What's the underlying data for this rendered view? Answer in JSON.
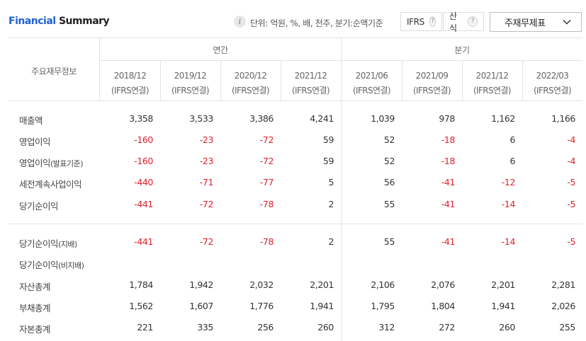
{
  "header": {
    "title_part1": "Financial",
    "title_part2": "Summary",
    "info_icon": "i",
    "unit_text": "단위: 억원, %, 배, 천주, 분기:순액기준",
    "ifrs_label": "IFRS",
    "calc_label": "산식",
    "help_glyph": "?",
    "statement_select": "주재무제표"
  },
  "table": {
    "row_header": "주요재무정보",
    "group_annual": "연간",
    "group_quarter": "분기",
    "periods": [
      {
        "date": "2018/12",
        "basis": "(IFRS연결)"
      },
      {
        "date": "2019/12",
        "basis": "(IFRS연결)"
      },
      {
        "date": "2020/12",
        "basis": "(IFRS연결)"
      },
      {
        "date": "2021/12",
        "basis": "(IFRS연결)"
      },
      {
        "date": "2021/06",
        "basis": "(IFRS연결)"
      },
      {
        "date": "2021/09",
        "basis": "(IFRS연결)"
      },
      {
        "date": "2021/12",
        "basis": "(IFRS연결)"
      },
      {
        "date": "2022/03",
        "basis": "(IFRS연결)"
      }
    ],
    "rows": [
      {
        "label": "매출액",
        "label_suffix": "",
        "values": [
          "3,358",
          "3,533",
          "3,386",
          "4,241",
          "1,039",
          "978",
          "1,162",
          "1,166"
        ]
      },
      {
        "label": "영업이익",
        "label_suffix": "",
        "values": [
          "-160",
          "-23",
          "-72",
          "59",
          "52",
          "-18",
          "6",
          "-4"
        ]
      },
      {
        "label": "영업이익",
        "label_suffix": "(발표기준)",
        "values": [
          "-160",
          "-23",
          "-72",
          "59",
          "52",
          "-18",
          "6",
          "-4"
        ]
      },
      {
        "label": "세전계속사업이익",
        "label_suffix": "",
        "values": [
          "-440",
          "-71",
          "-77",
          "5",
          "56",
          "-41",
          "-12",
          "-5"
        ]
      },
      {
        "label": "당기순이익",
        "label_suffix": "",
        "values": [
          "-441",
          "-72",
          "-78",
          "2",
          "55",
          "-41",
          "-14",
          "-5"
        ]
      },
      {
        "label": "당기순이익",
        "label_suffix": "(지배)",
        "values": [
          "-441",
          "-72",
          "-78",
          "2",
          "55",
          "-41",
          "-14",
          "-5"
        ]
      },
      {
        "label": "당기순이익",
        "label_suffix": "(비지배)",
        "values": [
          "",
          "",
          "",
          "",
          "",
          "",
          "",
          ""
        ]
      },
      {
        "label": "자산총계",
        "label_suffix": "",
        "values": [
          "1,784",
          "1,942",
          "2,032",
          "2,201",
          "2,106",
          "2,076",
          "2,201",
          "2,281"
        ]
      },
      {
        "label": "부채총계",
        "label_suffix": "",
        "values": [
          "1,562",
          "1,607",
          "1,776",
          "1,941",
          "1,795",
          "1,804",
          "1,941",
          "2,026"
        ]
      },
      {
        "label": "자본총계",
        "label_suffix": "",
        "values": [
          "221",
          "335",
          "256",
          "260",
          "312",
          "272",
          "260",
          "255"
        ]
      }
    ]
  },
  "colors": {
    "title_accent": "#1e62d0",
    "negative": "#e0202b"
  }
}
